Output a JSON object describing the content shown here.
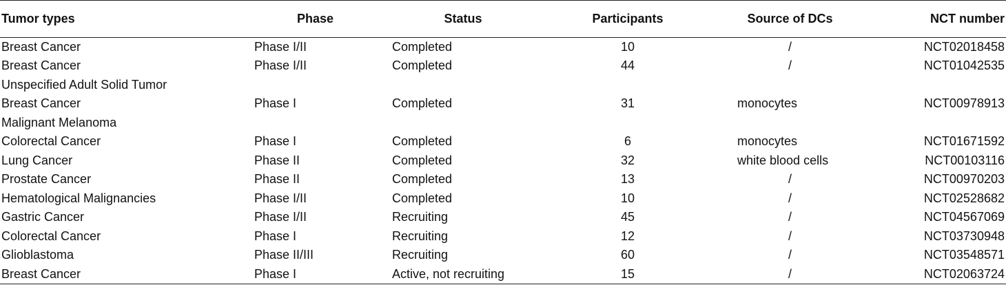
{
  "table": {
    "headers": {
      "tumor_types": "Tumor types",
      "phase": "Phase",
      "status": "Status",
      "participants": "Participants",
      "source_of_dcs": "Source of DCs",
      "nct_number": "NCT number"
    },
    "rows": [
      {
        "tumor": "Breast Cancer",
        "phase": "Phase I/II",
        "status": "Completed",
        "participants": "10",
        "source": "/",
        "nct": "NCT02018458"
      },
      {
        "tumor": "Breast Cancer",
        "phase": "Phase I/II",
        "status": "Completed",
        "participants": "44",
        "source": "/",
        "nct": "NCT01042535"
      },
      {
        "tumor": "Unspecified Adult Solid Tumor",
        "phase": "",
        "status": "",
        "participants": "",
        "source": "",
        "nct": ""
      },
      {
        "tumor": "Breast Cancer",
        "phase": "Phase I",
        "status": "Completed",
        "participants": "31",
        "source": "monocytes",
        "nct": "NCT00978913"
      },
      {
        "tumor": "Malignant Melanoma",
        "phase": "",
        "status": "",
        "participants": "",
        "source": "",
        "nct": ""
      },
      {
        "tumor": "Colorectal Cancer",
        "phase": "Phase I",
        "status": "Completed",
        "participants": "6",
        "source": "monocytes",
        "nct": "NCT01671592"
      },
      {
        "tumor": "Lung Cancer",
        "phase": "Phase II",
        "status": "Completed",
        "participants": "32",
        "source": "white blood cells",
        "nct": "NCT00103116"
      },
      {
        "tumor": "Prostate Cancer",
        "phase": "Phase II",
        "status": "Completed",
        "participants": "13",
        "source": "/",
        "nct": "NCT00970203"
      },
      {
        "tumor": "Hematological Malignancies",
        "phase": "Phase I/II",
        "status": "Completed",
        "participants": "10",
        "source": "/",
        "nct": "NCT02528682"
      },
      {
        "tumor": "Gastric Cancer",
        "phase": "Phase I/II",
        "status": "Recruiting",
        "participants": "45",
        "source": "/",
        "nct": "NCT04567069"
      },
      {
        "tumor": "Colorectal Cancer",
        "phase": "Phase I",
        "status": "Recruiting",
        "participants": "12",
        "source": "/",
        "nct": "NCT03730948"
      },
      {
        "tumor": "Glioblastoma",
        "phase": "Phase II/III",
        "status": "Recruiting",
        "participants": "60",
        "source": "/",
        "nct": "NCT03548571"
      },
      {
        "tumor": "Breast Cancer",
        "phase": "Phase I",
        "status": "Active, not recruiting",
        "participants": "15",
        "source": "/",
        "nct": "NCT02063724"
      }
    ]
  }
}
